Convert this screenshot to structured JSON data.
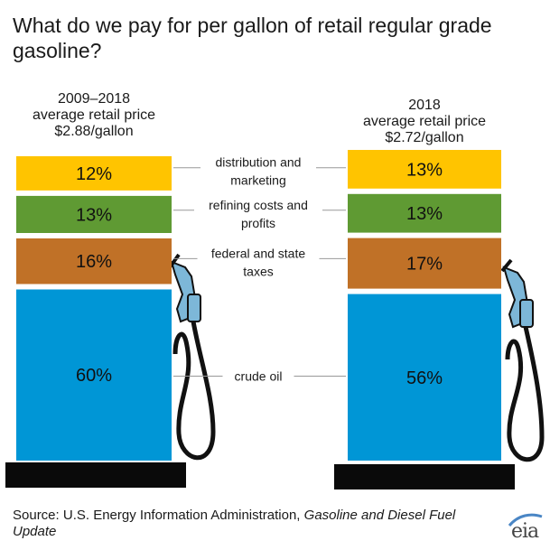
{
  "title": "What do we pay for per gallon of retail regular grade gasoline?",
  "source_prefix": "Source: U.S. Energy Information Administration, ",
  "source_title": "Gasoline and Diesel Fuel Update",
  "logo_text": "eia",
  "chart_data": {
    "type": "bar",
    "subtype": "stacked-100",
    "title": "What do we pay for per gallon of retail regular grade gasoline?",
    "stack_order_bottom_to_top": [
      "crude oil",
      "federal and state taxes",
      "refining costs and profits",
      "distribution and marketing"
    ],
    "categories": [
      {
        "name": "2009–2018 average retail price",
        "header": [
          "2009–2018",
          "average retail price",
          "$2.88/gallon"
        ],
        "price": 2.88,
        "unit": "$/gallon"
      },
      {
        "name": "2018 average retail price",
        "header": [
          "2018",
          "average retail price",
          "$2.72/gallon"
        ],
        "price": 2.72,
        "unit": "$/gallon"
      }
    ],
    "series": [
      {
        "name": "distribution and marketing",
        "label_lines": [
          "distribution and",
          "marketing"
        ],
        "color": "#ffc400",
        "values": [
          12,
          13
        ],
        "value_labels": [
          "12%",
          "13%"
        ]
      },
      {
        "name": "refining costs and profits",
        "label_lines": [
          "refining costs and",
          "profits"
        ],
        "color": "#5f9a33",
        "values": [
          13,
          13
        ],
        "value_labels": [
          "13%",
          "13%"
        ]
      },
      {
        "name": "federal and state taxes",
        "label_lines": [
          "federal and state",
          "taxes"
        ],
        "color": "#c07127",
        "values": [
          16,
          17
        ],
        "value_labels": [
          "16%",
          "17%"
        ]
      },
      {
        "name": "crude oil",
        "label_lines": [
          "crude oil"
        ],
        "color": "#0096d6",
        "values": [
          60,
          56
        ],
        "value_labels": [
          "60%",
          "56%"
        ]
      }
    ]
  }
}
